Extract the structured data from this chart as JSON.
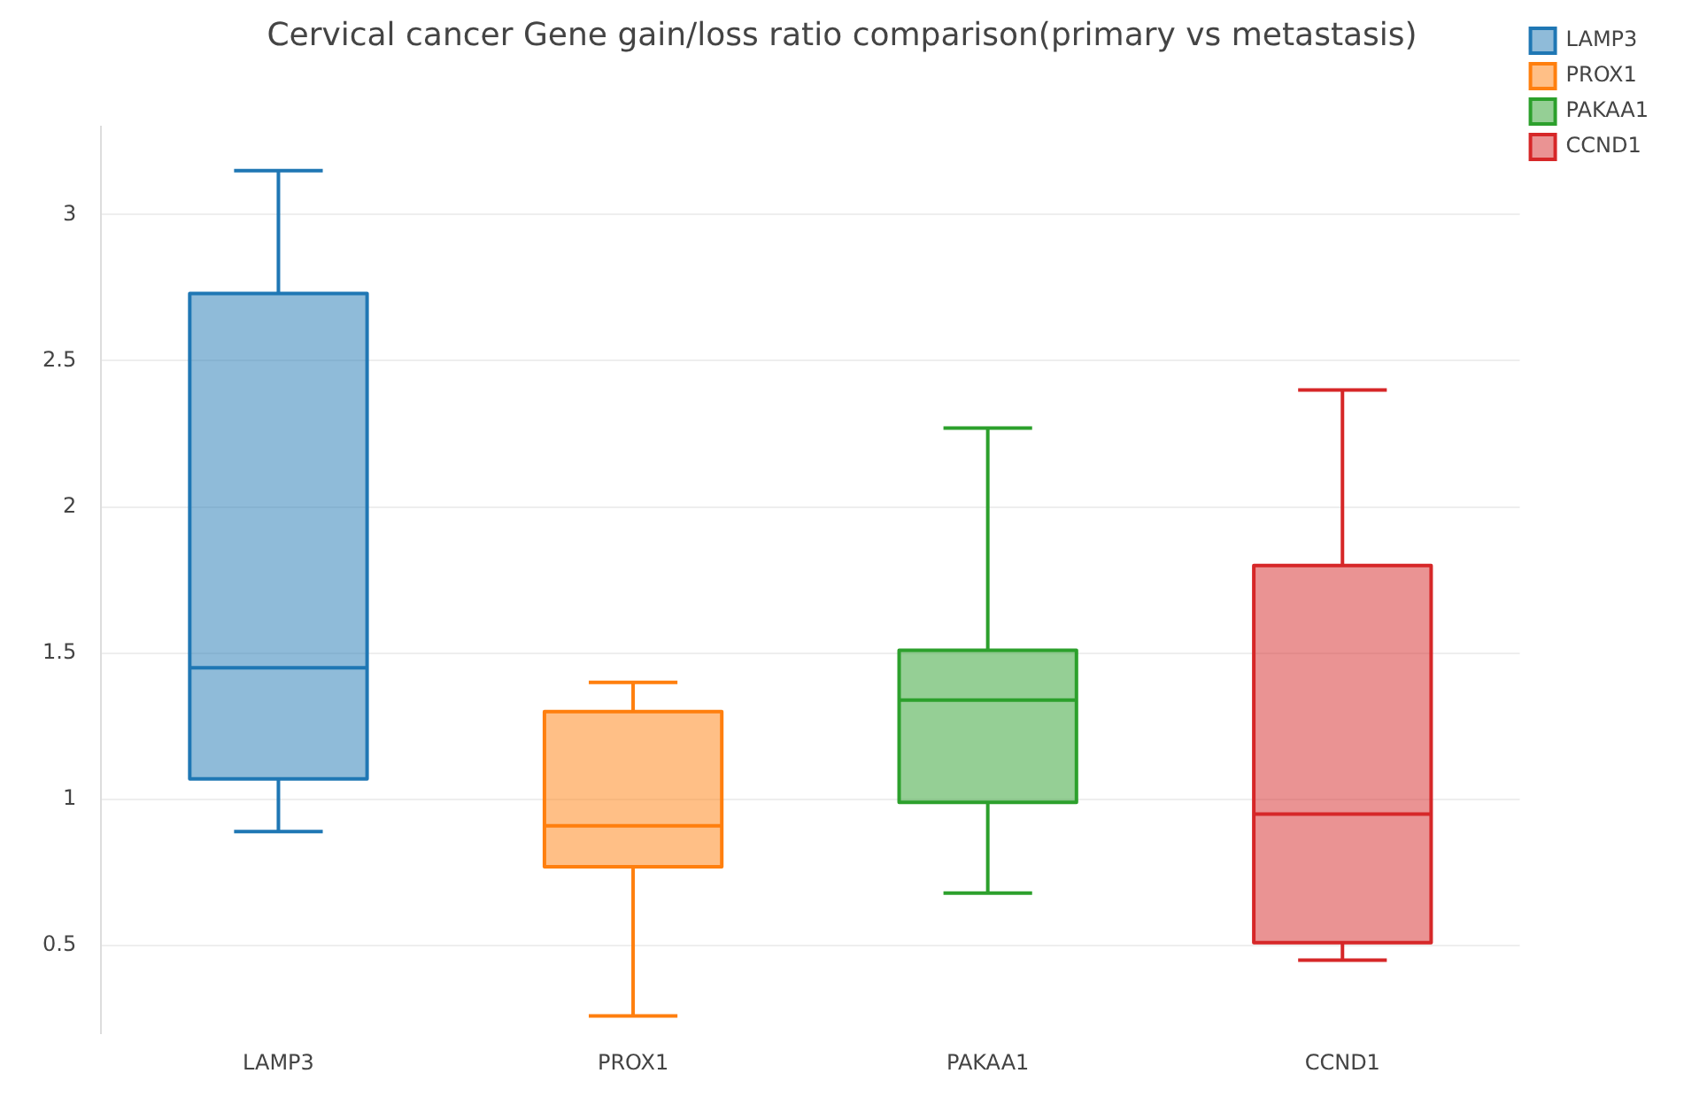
{
  "chart_data": {
    "type": "box",
    "title": "Cervical cancer Gene gain/loss ratio comparison(primary vs metastasis)",
    "categories": [
      "LAMP3",
      "PROX1",
      "PAKAA1",
      "CCND1"
    ],
    "series": [
      {
        "name": "LAMP3",
        "color": "#1f77b4",
        "x": [
          "LAMP3"
        ],
        "boxes": [
          {
            "low": 0.89,
            "q1": 1.07,
            "median": 1.45,
            "q3": 2.73,
            "high": 3.15
          }
        ]
      },
      {
        "name": "PROX1",
        "color": "#ff7f0e",
        "x": [
          "PROX1"
        ],
        "boxes": [
          {
            "low": 0.26,
            "q1": 0.77,
            "median": 0.91,
            "q3": 1.3,
            "high": 1.4
          }
        ]
      },
      {
        "name": "PAKAA1",
        "color": "#2ca02c",
        "x": [
          "PAKAA1"
        ],
        "boxes": [
          {
            "low": 0.68,
            "q1": 0.99,
            "median": 1.34,
            "q3": 1.51,
            "high": 2.27
          }
        ]
      },
      {
        "name": "CCND1",
        "color": "#d62728",
        "x": [
          "CCND1"
        ],
        "boxes": [
          {
            "low": 0.45,
            "q1": 0.51,
            "median": 0.95,
            "q3": 1.8,
            "high": 2.4
          }
        ]
      }
    ],
    "ylim": [
      0.2,
      3.3
    ],
    "yticks": [
      0.5,
      1,
      1.5,
      2,
      2.5,
      3
    ],
    "grid": "y",
    "legend": "top right"
  }
}
